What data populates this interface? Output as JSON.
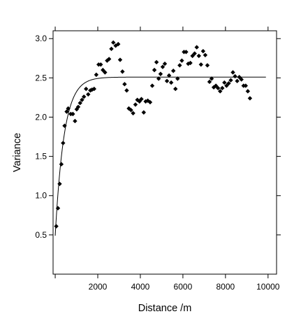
{
  "chart_data": {
    "type": "scatter",
    "title": "",
    "xlabel": "Distance /m",
    "ylabel": "Variance",
    "xlim": [
      -100,
      10400
    ],
    "ylim": [
      0.0,
      3.1
    ],
    "xticks": [
      2000,
      4000,
      6000,
      8000,
      10000
    ],
    "xtick_labels": [
      "2000",
      "4000",
      "6000",
      "8000",
      "10000"
    ],
    "xticks_unlabeled": [
      0
    ],
    "yticks": [
      0.5,
      1.0,
      1.5,
      2.0,
      2.5,
      3.0
    ],
    "ytick_labels": [
      "0.5",
      "1.0",
      "1.5",
      "2.0",
      "2.5",
      "3.0"
    ],
    "grid": false,
    "legend": "none",
    "marker": "diamond",
    "marker_color": "#000000",
    "line_color": "#000000",
    "points": [
      [
        50,
        0.61
      ],
      [
        130,
        0.84
      ],
      [
        210,
        1.15
      ],
      [
        290,
        1.4
      ],
      [
        370,
        1.67
      ],
      [
        440,
        1.89
      ],
      [
        540,
        2.07
      ],
      [
        610,
        2.11
      ],
      [
        730,
        2.04
      ],
      [
        830,
        2.04
      ],
      [
        930,
        1.95
      ],
      [
        1010,
        2.1
      ],
      [
        1080,
        2.13
      ],
      [
        1170,
        2.18
      ],
      [
        1260,
        2.22
      ],
      [
        1350,
        2.26
      ],
      [
        1450,
        2.36
      ],
      [
        1550,
        2.29
      ],
      [
        1650,
        2.34
      ],
      [
        1730,
        2.35
      ],
      [
        1830,
        2.36
      ],
      [
        1930,
        2.54
      ],
      [
        2040,
        2.67
      ],
      [
        2140,
        2.67
      ],
      [
        2240,
        2.6
      ],
      [
        2340,
        2.57
      ],
      [
        2440,
        2.72
      ],
      [
        2530,
        2.74
      ],
      [
        2640,
        2.87
      ],
      [
        2730,
        2.95
      ],
      [
        2840,
        2.91
      ],
      [
        2960,
        2.93
      ],
      [
        3050,
        2.73
      ],
      [
        3160,
        2.58
      ],
      [
        3260,
        2.42
      ],
      [
        3360,
        2.34
      ],
      [
        3460,
        2.11
      ],
      [
        3560,
        2.09
      ],
      [
        3660,
        2.05
      ],
      [
        3770,
        2.16
      ],
      [
        3860,
        2.22
      ],
      [
        3960,
        2.2
      ],
      [
        4050,
        2.23
      ],
      [
        4160,
        2.06
      ],
      [
        4250,
        2.2
      ],
      [
        4350,
        2.21
      ],
      [
        4460,
        2.19
      ],
      [
        4560,
        2.4
      ],
      [
        4660,
        2.6
      ],
      [
        4760,
        2.7
      ],
      [
        4860,
        2.49
      ],
      [
        4950,
        2.55
      ],
      [
        5050,
        2.64
      ],
      [
        5150,
        2.68
      ],
      [
        5250,
        2.46
      ],
      [
        5350,
        2.53
      ],
      [
        5450,
        2.44
      ],
      [
        5550,
        2.59
      ],
      [
        5650,
        2.36
      ],
      [
        5750,
        2.49
      ],
      [
        5850,
        2.66
      ],
      [
        5950,
        2.72
      ],
      [
        6050,
        2.83
      ],
      [
        6150,
        2.83
      ],
      [
        6250,
        2.68
      ],
      [
        6350,
        2.69
      ],
      [
        6450,
        2.78
      ],
      [
        6550,
        2.81
      ],
      [
        6650,
        2.89
      ],
      [
        6750,
        2.78
      ],
      [
        6850,
        2.67
      ],
      [
        6950,
        2.84
      ],
      [
        7050,
        2.79
      ],
      [
        7150,
        2.66
      ],
      [
        7250,
        2.45
      ],
      [
        7350,
        2.49
      ],
      [
        7450,
        2.38
      ],
      [
        7550,
        2.4
      ],
      [
        7650,
        2.37
      ],
      [
        7750,
        2.33
      ],
      [
        7850,
        2.37
      ],
      [
        7950,
        2.44
      ],
      [
        8050,
        2.4
      ],
      [
        8150,
        2.43
      ],
      [
        8250,
        2.47
      ],
      [
        8350,
        2.57
      ],
      [
        8450,
        2.52
      ],
      [
        8550,
        2.46
      ],
      [
        8650,
        2.51
      ],
      [
        8750,
        2.48
      ],
      [
        8850,
        2.4
      ],
      [
        8950,
        2.4
      ],
      [
        9050,
        2.33
      ],
      [
        9150,
        2.24
      ]
    ],
    "fitted_model": {
      "type": "exponential",
      "nugget": 0.49,
      "sill": 2.51,
      "range_param": 420,
      "x_from": 0,
      "x_to": 9900
    }
  }
}
